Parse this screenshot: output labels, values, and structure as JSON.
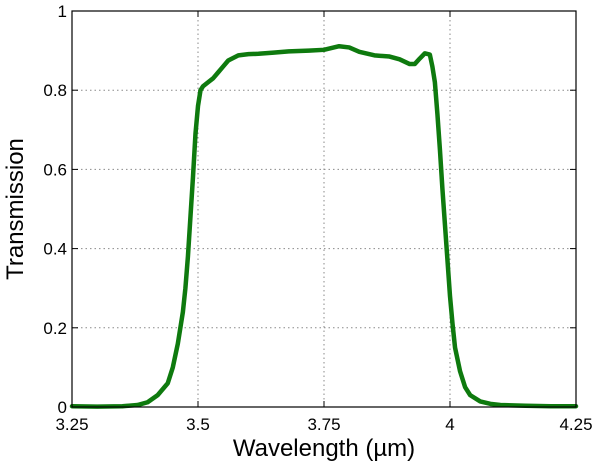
{
  "chart_data": {
    "type": "line",
    "title": "",
    "xlabel": "Wavelength (µm)",
    "ylabel": "Transmission",
    "xlim": [
      3.25,
      4.25
    ],
    "ylim": [
      0,
      1
    ],
    "grid": true,
    "xticks": [
      3.25,
      3.5,
      3.75,
      4.0,
      4.25
    ],
    "xtick_labels": [
      "3.25",
      "3.5",
      "3.75",
      "4",
      "4.25"
    ],
    "yticks": [
      0,
      0.2,
      0.4,
      0.6,
      0.8,
      1.0
    ],
    "ytick_labels": [
      "0",
      "0.2",
      "0.4",
      "0.6",
      "0.8",
      "1"
    ],
    "series": [
      {
        "color": "#0e7a0e",
        "x": [
          3.25,
          3.3,
          3.35,
          3.38,
          3.4,
          3.42,
          3.44,
          3.45,
          3.46,
          3.47,
          3.475,
          3.48,
          3.485,
          3.49,
          3.495,
          3.5,
          3.505,
          3.51,
          3.52,
          3.53,
          3.54,
          3.55,
          3.56,
          3.58,
          3.6,
          3.62,
          3.65,
          3.68,
          3.7,
          3.72,
          3.75,
          3.78,
          3.8,
          3.82,
          3.85,
          3.88,
          3.9,
          3.92,
          3.93,
          3.94,
          3.95,
          3.96,
          3.965,
          3.97,
          3.975,
          3.98,
          3.985,
          3.99,
          3.995,
          4.0,
          4.005,
          4.01,
          4.02,
          4.03,
          4.04,
          4.06,
          4.08,
          4.1,
          4.15,
          4.2,
          4.25
        ],
        "y": [
          0.002,
          0.001,
          0.002,
          0.005,
          0.012,
          0.03,
          0.06,
          0.1,
          0.16,
          0.24,
          0.3,
          0.38,
          0.48,
          0.58,
          0.69,
          0.76,
          0.8,
          0.81,
          0.82,
          0.83,
          0.845,
          0.86,
          0.875,
          0.888,
          0.891,
          0.892,
          0.895,
          0.898,
          0.899,
          0.9,
          0.902,
          0.911,
          0.908,
          0.897,
          0.888,
          0.885,
          0.878,
          0.866,
          0.866,
          0.88,
          0.893,
          0.89,
          0.86,
          0.82,
          0.74,
          0.65,
          0.55,
          0.46,
          0.37,
          0.28,
          0.21,
          0.15,
          0.09,
          0.05,
          0.03,
          0.014,
          0.008,
          0.005,
          0.003,
          0.002,
          0.002
        ]
      }
    ]
  }
}
